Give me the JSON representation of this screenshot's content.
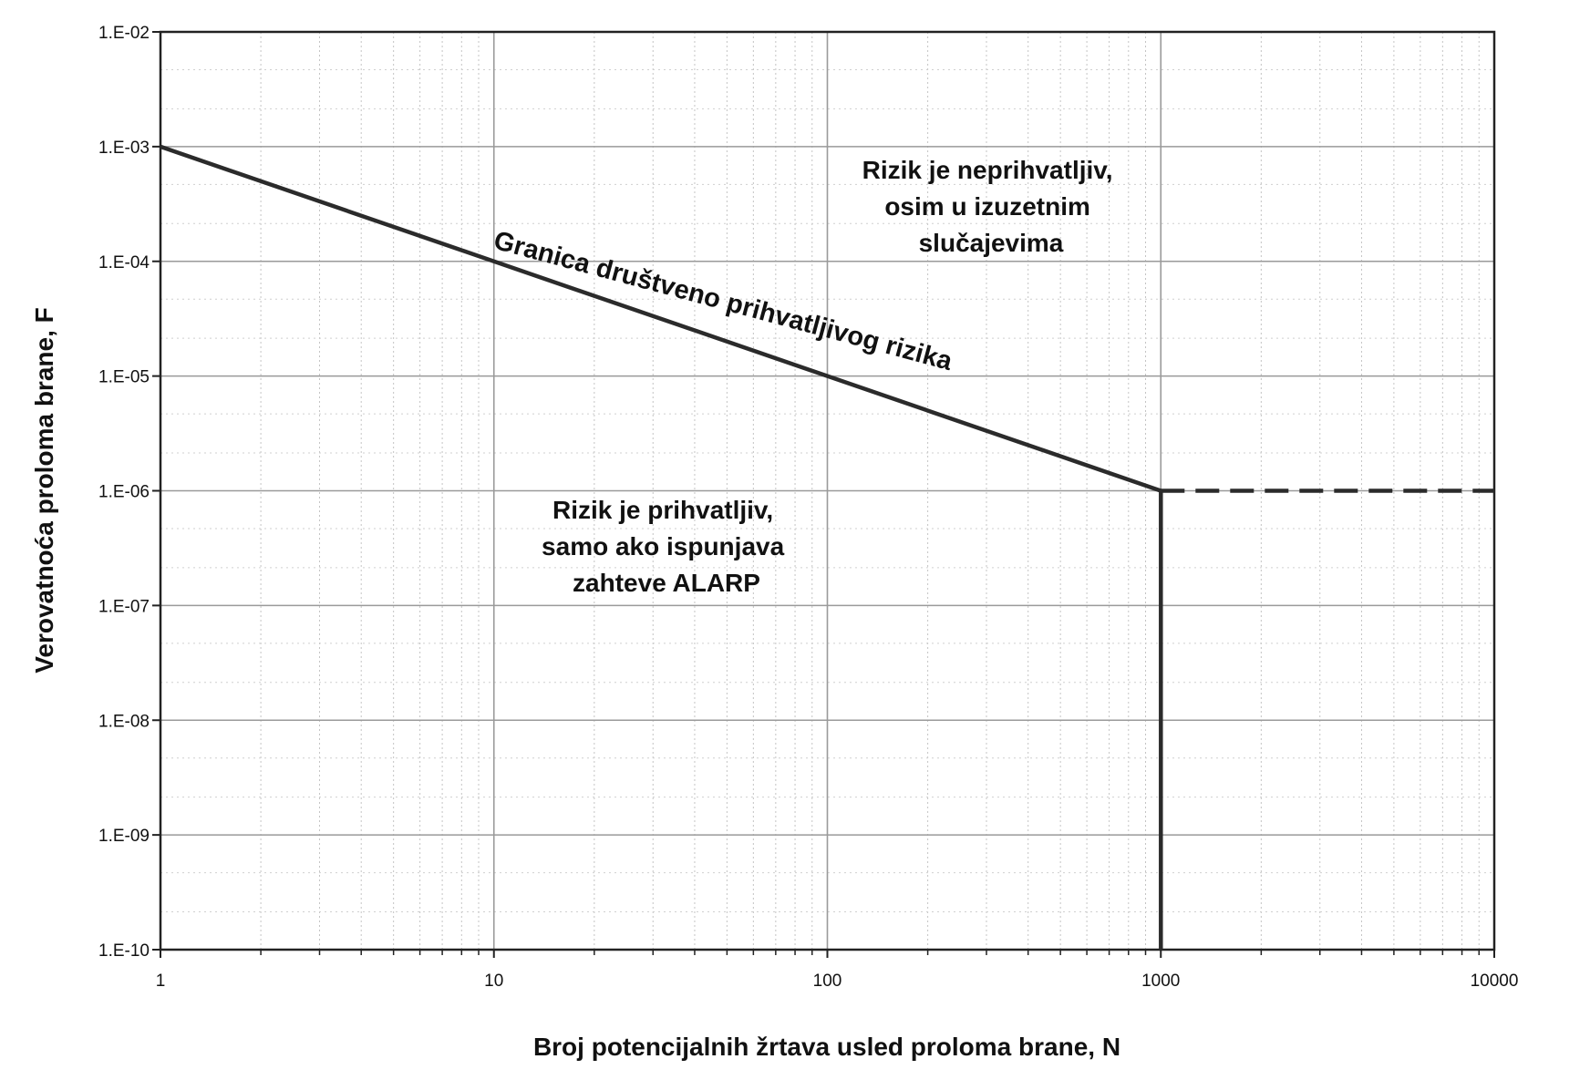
{
  "chart_data": {
    "type": "line",
    "xlabel": "Broj potencijalnih žrtava usled proloma brane, N",
    "ylabel": "Verovatnoća proloma brane, F",
    "x_scale": "log",
    "y_scale": "log",
    "xlim": [
      1,
      10000
    ],
    "ylim": [
      1e-10,
      0.01
    ],
    "x_tick_labels": [
      "1",
      "10",
      "100",
      "1000",
      "10000"
    ],
    "x_tick_values": [
      1,
      10,
      100,
      1000,
      10000
    ],
    "y_tick_labels": [
      "1.E-02",
      "1.E-03",
      "1.E-04",
      "1.E-05",
      "1.E-06",
      "1.E-07",
      "1.E-08",
      "1.E-09",
      "1.E-10"
    ],
    "y_tick_values": [
      0.01,
      0.001,
      0.0001,
      1e-05,
      1e-06,
      1e-07,
      1e-08,
      1e-09,
      1e-10
    ],
    "grid": true,
    "series": [
      {
        "name": "Granica društveno prihvatljivog rizika",
        "style": "solid",
        "points": [
          [
            1,
            0.001
          ],
          [
            1000,
            1e-06
          ]
        ]
      },
      {
        "style": "solid",
        "points": [
          [
            1000,
            1e-06
          ],
          [
            1000,
            1e-10
          ]
        ]
      },
      {
        "style": "dashed",
        "points": [
          [
            1000,
            1e-06
          ],
          [
            10000,
            1e-06
          ]
        ]
      }
    ],
    "annotations": [
      {
        "lines": [
          "Rizik je neprihvatljiv,",
          "osim u izuzetnim",
          "slučajevima"
        ]
      },
      {
        "lines": [
          "Rizik je prihvatljiv,",
          "samo ako ispunjava",
          "zahteve ALARP"
        ]
      }
    ],
    "colors": {
      "line": "#2b2b2b",
      "grid": "#9a9a9a",
      "frame": "#222222"
    }
  }
}
